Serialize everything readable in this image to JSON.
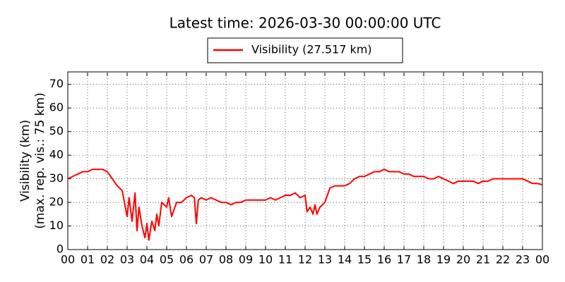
{
  "chart_data": {
    "type": "line",
    "title": "Latest time: 2026-03-30 00:00:00 UTC",
    "ylabel": [
      "Visibility (km)",
      "(max. rep. vis.: 75 km)"
    ],
    "xlim": [
      0,
      24
    ],
    "ylim": [
      0,
      75
    ],
    "xticks": [
      {
        "value": 0,
        "label": "00"
      },
      {
        "value": 1,
        "label": "01"
      },
      {
        "value": 2,
        "label": "02"
      },
      {
        "value": 3,
        "label": "03"
      },
      {
        "value": 4,
        "label": "04"
      },
      {
        "value": 5,
        "label": "05"
      },
      {
        "value": 6,
        "label": "06"
      },
      {
        "value": 7,
        "label": "07"
      },
      {
        "value": 8,
        "label": "08"
      },
      {
        "value": 9,
        "label": "09"
      },
      {
        "value": 10,
        "label": "10"
      },
      {
        "value": 11,
        "label": "11"
      },
      {
        "value": 12,
        "label": "12"
      },
      {
        "value": 13,
        "label": "13"
      },
      {
        "value": 14,
        "label": "14"
      },
      {
        "value": 15,
        "label": "15"
      },
      {
        "value": 16,
        "label": "16"
      },
      {
        "value": 17,
        "label": "17"
      },
      {
        "value": 18,
        "label": "18"
      },
      {
        "value": 19,
        "label": "19"
      },
      {
        "value": 20,
        "label": "20"
      },
      {
        "value": 21,
        "label": "21"
      },
      {
        "value": 22,
        "label": "22"
      },
      {
        "value": 23,
        "label": "23"
      },
      {
        "value": 24,
        "label": "00"
      }
    ],
    "yticks": [
      0,
      10,
      20,
      30,
      40,
      50,
      60,
      70
    ],
    "grid": true,
    "legend": "top",
    "x": [
      0,
      0.25,
      0.5,
      0.75,
      1,
      1.25,
      1.5,
      1.75,
      2,
      2.25,
      2.5,
      2.75,
      3,
      3.1,
      3.25,
      3.4,
      3.5,
      3.6,
      3.75,
      3.9,
      4,
      4.1,
      4.25,
      4.4,
      4.5,
      4.6,
      4.75,
      5,
      5.1,
      5.25,
      5.5,
      5.75,
      6,
      6.25,
      6.4,
      6.5,
      6.6,
      6.75,
      7,
      7.25,
      7.5,
      7.75,
      8,
      8.25,
      8.5,
      8.75,
      9,
      9.25,
      9.5,
      9.75,
      10,
      10.25,
      10.5,
      10.75,
      11,
      11.25,
      11.5,
      11.75,
      12,
      12.1,
      12.25,
      12.4,
      12.5,
      12.6,
      12.75,
      13,
      13.25,
      13.5,
      13.75,
      14,
      14.25,
      14.5,
      14.75,
      15,
      15.25,
      15.5,
      15.75,
      16,
      16.25,
      16.5,
      16.75,
      17,
      17.25,
      17.5,
      17.75,
      18,
      18.25,
      18.5,
      18.75,
      19,
      19.25,
      19.5,
      19.75,
      20,
      20.25,
      20.5,
      20.75,
      21,
      21.25,
      21.5,
      21.75,
      22,
      22.25,
      22.5,
      22.75,
      23,
      23.25,
      23.5,
      23.75,
      24
    ],
    "series": [
      {
        "name": "Visibility (27.517 km)",
        "color": "#ff0000",
        "values": [
          30,
          31,
          32,
          33,
          33,
          34,
          34,
          34,
          33,
          30,
          27,
          25,
          14,
          22,
          12,
          24,
          8,
          18,
          10,
          5,
          11,
          4,
          12,
          8,
          15,
          10,
          20,
          18,
          22,
          14,
          20,
          20,
          22,
          23,
          22,
          11,
          21,
          22,
          21,
          22,
          21,
          20,
          20,
          19,
          20,
          20,
          21,
          21,
          21,
          21,
          21,
          22,
          21,
          22,
          23,
          23,
          24,
          22,
          23,
          16,
          18,
          15,
          19,
          15,
          18,
          20,
          26,
          27,
          27,
          27,
          28,
          30,
          31,
          31,
          32,
          33,
          33,
          34,
          33,
          33,
          33,
          32,
          32,
          31,
          31,
          31,
          30,
          30,
          31,
          30,
          29,
          28,
          29,
          29,
          29,
          29,
          28,
          29,
          29,
          30,
          30,
          30,
          30,
          30,
          30,
          30,
          29,
          28,
          28,
          27.5
        ]
      }
    ]
  }
}
